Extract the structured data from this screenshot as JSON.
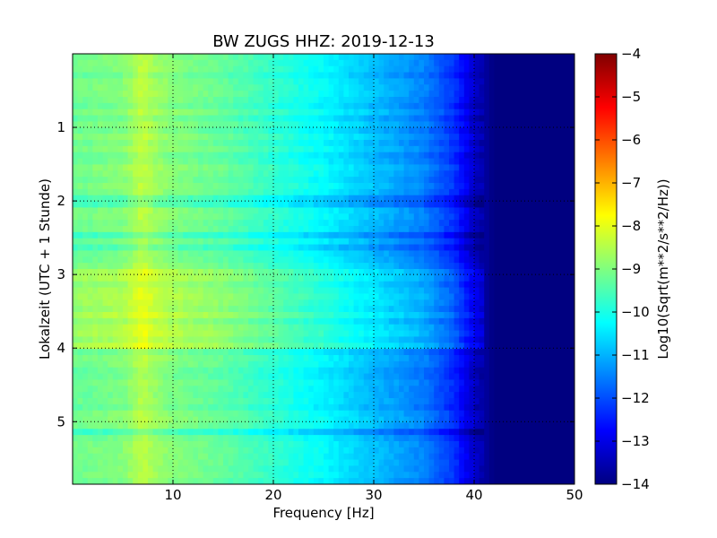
{
  "chart_data": {
    "type": "heatmap",
    "title": "BW ZUGS HHZ: 2019-12-13",
    "xlabel": "Frequency [Hz]",
    "ylabel": "Lokalzeit (UTC + 1 Stunde)",
    "xlim": [
      0,
      50
    ],
    "ylim": [
      5.85,
      0.0
    ],
    "x_ticks": [
      10,
      20,
      30,
      40,
      50
    ],
    "y_ticks": [
      1,
      2,
      3,
      4,
      5
    ],
    "grid": true,
    "colormap": "jet",
    "colorbar": {
      "label": "Log10(Sqrt(m**2/s**2/Hz))",
      "range": [
        -14,
        -4
      ],
      "ticks": [
        -4,
        -5,
        -6,
        -7,
        -8,
        -9,
        -10,
        -11,
        -12,
        -13,
        -14
      ]
    },
    "approx_level_profile": {
      "frequency_hz": [
        0,
        5,
        7,
        8,
        10,
        15,
        20,
        25,
        30,
        35,
        38,
        40,
        42,
        50
      ],
      "log10_amplitude": [
        -9.2,
        -9.0,
        -8.4,
        -8.7,
        -9.0,
        -9.3,
        -9.8,
        -10.3,
        -10.9,
        -11.5,
        -12.3,
        -13.3,
        -14.0,
        -14.0
      ]
    }
  },
  "colors": {
    "jet": [
      "#000080",
      "#0000ff",
      "#00ffff",
      "#ffff00",
      "#ff0000",
      "#800000"
    ]
  }
}
